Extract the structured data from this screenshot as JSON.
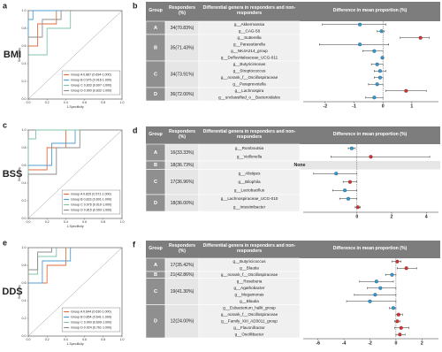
{
  "chart_data": [
    {
      "type": "roc",
      "panel": "a",
      "row_label": "BMI",
      "xlabel": "1-Specificity",
      "ylabel": "Sensitivity",
      "xlim": [
        0,
        1
      ],
      "ylim": [
        0,
        1
      ],
      "xticks": [
        {
          "value": 0,
          "label": "0.0"
        },
        0.2,
        0.4,
        0.6,
        0.8,
        {
          "value": 1,
          "label": "1.0"
        }
      ],
      "yticks": [
        {
          "value": 0,
          "label": "0.0"
        },
        0.2,
        0.4,
        0.6,
        0.8,
        {
          "value": 1,
          "label": "1.0"
        }
      ],
      "series": [
        {
          "name": "Group A 0.887 (0.694-1.000)",
          "color": "#e36c3c",
          "x": [
            0,
            0,
            0.1,
            0.1,
            0.3,
            0.3,
            1
          ],
          "y": [
            0,
            0.6,
            0.6,
            0.85,
            0.85,
            1,
            1
          ]
        },
        {
          "name": "Group B 0.975 (0.916-1.000)",
          "color": "#4f9fd6",
          "x": [
            0,
            0,
            0.05,
            0.05,
            1
          ],
          "y": [
            0,
            0.9,
            0.9,
            1,
            1
          ]
        },
        {
          "name": "Group C 0.833 (0.607-1.000)",
          "color": "#7fc4a4",
          "x": [
            0,
            0,
            0.2,
            0.2,
            0.45,
            0.45,
            1
          ],
          "y": [
            0,
            0.5,
            0.5,
            0.8,
            0.8,
            1,
            1
          ]
        },
        {
          "name": "Group D 0.900 (0.832-1.000)",
          "color": "#8c8c8c",
          "x": [
            0,
            0,
            0.15,
            0.15,
            0.35,
            0.35,
            1
          ],
          "y": [
            0,
            0.7,
            0.7,
            0.9,
            0.9,
            1,
            1
          ]
        }
      ]
    },
    {
      "type": "forest",
      "panel": "b",
      "columns": [
        "Group",
        "Responders (%)",
        "Differential genera in responders and non-responders",
        "Difference in mean proportion (%)"
      ],
      "xlim": [
        -2.7,
        1.8
      ],
      "xticks": [
        -2,
        -1,
        0,
        1
      ],
      "groups": [
        {
          "group": "A",
          "responders": "34(70.83%)",
          "genera": [
            "g__Akkermansia",
            "g__CAG-56"
          ],
          "colors": [
            "#2e9bd6",
            "#2e9bd6"
          ],
          "values": [
            -0.8,
            -0.05
          ],
          "lower": [
            -2.1,
            -0.2
          ],
          "upper": [
            0.1,
            0.05
          ]
        },
        {
          "group": "B",
          "responders": "35(71.43%)",
          "genera": [
            "g__Sutterella",
            "g__Parasutterella",
            "g__NK4A214_group",
            "g__Defluviitaleaceae_UCG-011"
          ],
          "colors": [
            "#d9302c",
            "#2e9bd6",
            "#2e9bd6",
            "#2e9bd6"
          ],
          "values": [
            1.3,
            -0.8,
            -0.3,
            -0.02
          ],
          "lower": [
            0.6,
            -2.2,
            -0.7,
            -0.05
          ],
          "upper": [
            1.6,
            0.2,
            0,
            0
          ]
        },
        {
          "group": "C",
          "responders": "34(73.91%)",
          "genera": [
            "g__Butyricimonas",
            "g__Streptococcus",
            "g__norank_f__Oscillospiraceae",
            "g__Paraprevotella"
          ],
          "colors": [
            "#2e9bd6",
            "#2e9bd6",
            "#2e9bd6",
            "#2e9bd6"
          ],
          "values": [
            -0.2,
            -0.1,
            -0.1,
            -0.2
          ],
          "lower": [
            -0.4,
            -0.3,
            -0.3,
            -0.5
          ],
          "upper": [
            0,
            0.1,
            0,
            0
          ]
        },
        {
          "group": "D",
          "responders": "36(72.00%)",
          "genera": [
            "g__Lachnospira",
            "g__unclassified_o__Bacteroidales"
          ],
          "colors": [
            "#d9302c",
            "#2e9bd6"
          ],
          "values": [
            0.8,
            -0.3
          ],
          "lower": [
            0.1,
            -0.6
          ],
          "upper": [
            1.5,
            0
          ]
        }
      ]
    },
    {
      "type": "roc",
      "panel": "c",
      "row_label": "BSS",
      "xlabel": "1-Specificity",
      "ylabel": "Sensitivity",
      "xlim": [
        0,
        1
      ],
      "ylim": [
        0,
        1
      ],
      "xticks": [
        {
          "value": 0,
          "label": "0.0"
        },
        0.2,
        0.4,
        0.6,
        0.8,
        {
          "value": 1,
          "label": "1.0"
        }
      ],
      "yticks": [
        {
          "value": 0,
          "label": "0.0"
        },
        0.2,
        0.4,
        0.6,
        0.8,
        {
          "value": 1,
          "label": "1.0"
        }
      ],
      "series": [
        {
          "name": "Group A 0.825 (0.571-1.000)",
          "color": "#e36c3c",
          "x": [
            0,
            0,
            0.2,
            0.2,
            0.4,
            0.4,
            1
          ],
          "y": [
            0,
            0.55,
            0.55,
            0.8,
            0.8,
            1,
            1
          ]
        },
        {
          "name": "Group B 0.833 (0.601-1.000)",
          "color": "#4f9fd6",
          "x": [
            0,
            0,
            0.25,
            0.25,
            0.5,
            0.5,
            1
          ],
          "y": [
            0,
            0.6,
            0.6,
            0.85,
            0.85,
            1,
            1
          ]
        },
        {
          "name": "Group C 0.976 (0.910-1.000)",
          "color": "#7fc4a4",
          "x": [
            0,
            0,
            0.08,
            0.08,
            1
          ],
          "y": [
            0,
            0.9,
            0.9,
            1,
            1
          ]
        },
        {
          "name": "Group D 0.815 (0.593-1.000)",
          "color": "#8c8c8c",
          "x": [
            0,
            0,
            0.3,
            0.3,
            0.55,
            0.55,
            1
          ],
          "y": [
            0,
            0.5,
            0.5,
            0.8,
            0.8,
            1,
            1
          ]
        }
      ]
    },
    {
      "type": "forest",
      "panel": "d",
      "columns": [
        "Group",
        "Responders (%)",
        "Differential genera in responders and non-responders",
        "Difference in mean proportion (%)"
      ],
      "xlim": [
        -3,
        4.5
      ],
      "xticks": [
        0,
        2,
        4
      ],
      "groups": [
        {
          "group": "A",
          "responders": "16(33.33%)",
          "genera": [
            "g__Romboutsia",
            "g__Veillonella"
          ],
          "colors": [
            "#2e9bd6",
            "#d9302c"
          ],
          "values": [
            -0.3,
            0.8
          ],
          "lower": [
            -0.5,
            -1.5
          ],
          "upper": [
            -0.1,
            4.2
          ]
        },
        {
          "group": "B",
          "responders": "18(36.73%)",
          "note": "None",
          "genera": [],
          "colors": [],
          "values": [],
          "lower": [],
          "upper": []
        },
        {
          "group": "C",
          "responders": "17(36.96%)",
          "genera": [
            "g__Alistipes",
            "g__Bilophila",
            "g__Lactobacillus"
          ],
          "colors": [
            "#2e9bd6",
            "#d9302c",
            "#2e9bd6"
          ],
          "values": [
            -1.2,
            -0.4,
            -0.7
          ],
          "lower": [
            -2.5,
            -0.8,
            -1.4
          ],
          "upper": [
            0,
            0,
            0
          ]
        },
        {
          "group": "D",
          "responders": "18(36.00%)",
          "genera": [
            "g__Lachnospiraceae_UCG-010",
            "g__Intestinibacter"
          ],
          "colors": [
            "#2e9bd6",
            "#d9302c"
          ],
          "values": [
            -0.5,
            0.05
          ],
          "lower": [
            -1,
            -0.1
          ],
          "upper": [
            0,
            0.2
          ]
        }
      ]
    },
    {
      "type": "roc",
      "panel": "e",
      "row_label": "DDS",
      "xlabel": "1-Specificity",
      "ylabel": "Sensitivity",
      "xlim": [
        0,
        1
      ],
      "ylim": [
        0,
        1
      ],
      "xticks": [
        {
          "value": 0,
          "label": "0.0"
        },
        0.2,
        0.4,
        0.6,
        0.8,
        {
          "value": 1,
          "label": "1.0"
        }
      ],
      "yticks": [
        {
          "value": 0,
          "label": "0.0"
        },
        0.2,
        0.4,
        0.6,
        0.8,
        {
          "value": 1,
          "label": "1.0"
        }
      ],
      "series": [
        {
          "name": "Group A 0.844 (0.630-1.000)",
          "color": "#e36c3c",
          "x": [
            0,
            0,
            0.2,
            0.2,
            0.4,
            0.4,
            1
          ],
          "y": [
            0,
            0.6,
            0.6,
            0.8,
            0.8,
            1,
            1
          ]
        },
        {
          "name": "Group B 0.854 (0.641-1.000)",
          "color": "#4f9fd6",
          "x": [
            0,
            0,
            0.15,
            0.15,
            0.45,
            0.45,
            1
          ],
          "y": [
            0,
            0.6,
            0.6,
            0.85,
            0.85,
            1,
            1
          ]
        },
        {
          "name": "Group C 0.900 (0.699-1.000)",
          "color": "#7fc4a4",
          "x": [
            0,
            0,
            0.1,
            0.1,
            0.3,
            0.3,
            1
          ],
          "y": [
            0,
            0.7,
            0.7,
            0.9,
            0.9,
            1,
            1
          ]
        },
        {
          "name": "Group D 0.924 (0.761-1.000)",
          "color": "#8c8c8c",
          "x": [
            0,
            0,
            0.1,
            0.1,
            0.25,
            0.25,
            1
          ],
          "y": [
            0,
            0.75,
            0.75,
            0.95,
            0.95,
            1,
            1
          ]
        }
      ]
    },
    {
      "type": "forest",
      "panel": "f",
      "columns": [
        "Group",
        "Responders (%)",
        "Differential genera in responders and non-responders",
        "Difference in mean proportion (%)"
      ],
      "xlim": [
        -7,
        3
      ],
      "xticks": [
        -6,
        -4,
        -2,
        0,
        2
      ],
      "groups": [
        {
          "group": "A",
          "responders": "17(35.42%)",
          "genera": [
            "g__Butyricicoccus",
            "g__Blautia"
          ],
          "colors": [
            "#d9302c",
            "#d9302c"
          ],
          "values": [
            0.1,
            0.8
          ],
          "lower": [
            -0.3,
            0.1
          ],
          "upper": [
            0.4,
            1.6
          ]
        },
        {
          "group": "B",
          "responders": "21(42.86%)",
          "genera": [
            "g__norank_f__Oscillospiraceae"
          ],
          "colors": [
            "#2e9bd6"
          ],
          "values": [
            -0.3
          ],
          "lower": [
            -0.8
          ],
          "upper": [
            0
          ]
        },
        {
          "group": "C",
          "responders": "19(41.30%)",
          "genera": [
            "g__Roseburia",
            "g__Agathobacter",
            "g__Megamonas",
            "g__Blautia"
          ],
          "colors": [
            "#2e9bd6",
            "#2e9bd6",
            "#2e9bd6",
            "#2e9bd6"
          ],
          "values": [
            -1.5,
            -1.2,
            -1.6,
            -2.0
          ],
          "lower": [
            -2.8,
            -2.2,
            -3.2,
            -3.8
          ],
          "upper": [
            -0.2,
            0,
            0,
            0
          ]
        },
        {
          "group": "D",
          "responders": "12(24.00%)",
          "genera": [
            "g__Eubacterium_hallii_group",
            "g__norank_f__Oscillospiraceae",
            "g__Family_XIII_AD3011_group",
            "g__Flavonifractor",
            "g__Oscillibacter"
          ],
          "colors": [
            "#2e9bd6",
            "#d9302c",
            "#d9302c",
            "#d9302c",
            "#d9302c"
          ],
          "values": [
            -0.2,
            0.2,
            0.1,
            0.4,
            0.3
          ],
          "lower": [
            -0.5,
            0,
            -0.1,
            -0.1,
            0
          ],
          "upper": [
            0,
            0.5,
            0.3,
            1,
            0.7
          ]
        }
      ]
    }
  ]
}
